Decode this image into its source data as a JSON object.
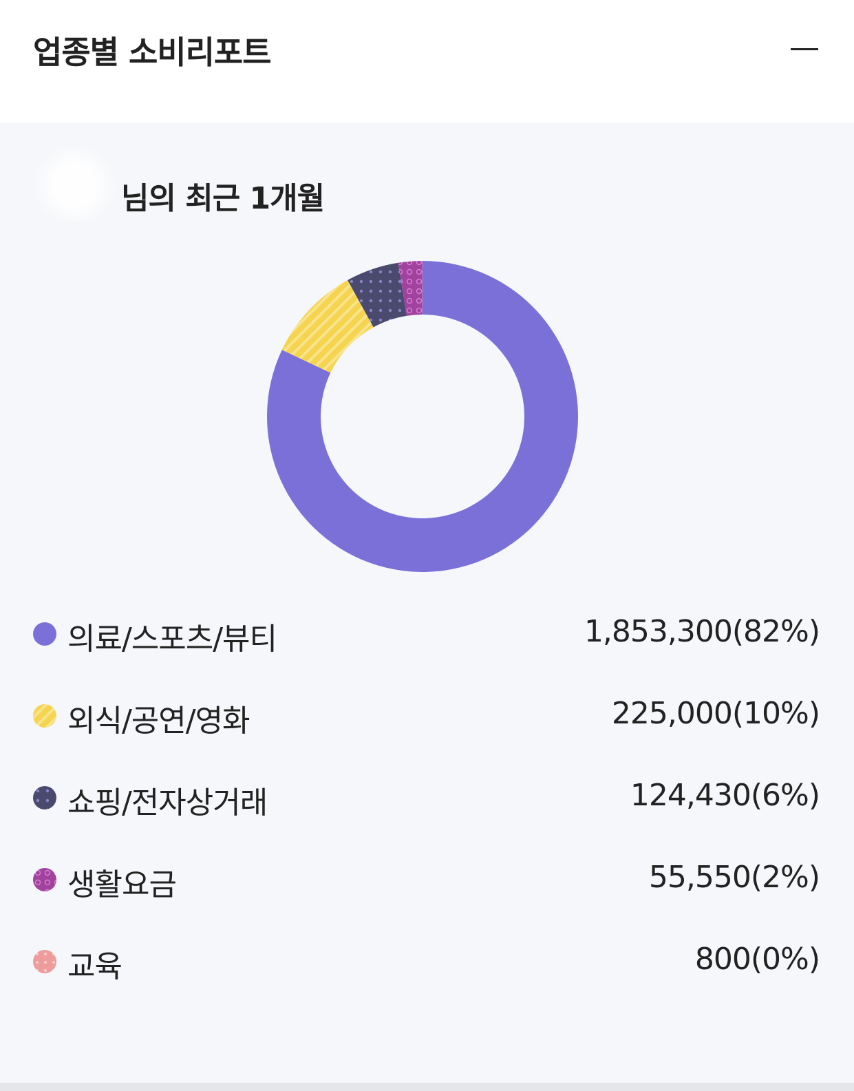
{
  "header": {
    "title": "업종별 소비리포트"
  },
  "subtitle": "님의 최근 1개월",
  "colors": {
    "medical": "#7b70d8",
    "dining": "#f5d44f",
    "shopping": "#4a4a6e",
    "utilities": "#a0429e",
    "education": "#ee9b9b"
  },
  "chart_data": {
    "type": "pie",
    "categories": [
      "의료/스포츠/뷰티",
      "외식/공연/영화",
      "쇼핑/전자상거래",
      "생활요금",
      "교육"
    ],
    "values": [
      1853300,
      225000,
      124430,
      55550,
      800
    ],
    "display": [
      "1,853,300(82%)",
      "225,000(10%)",
      "124,430(6%)",
      "55,550(2%)",
      "800(0%)"
    ],
    "percent": [
      82,
      10,
      6,
      2,
      0
    ],
    "donut": true,
    "legend": "bottom"
  }
}
